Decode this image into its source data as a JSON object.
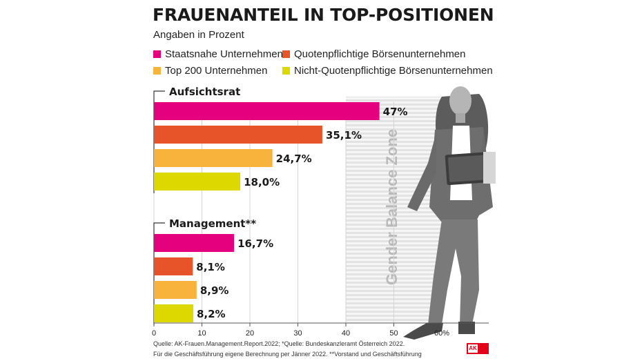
{
  "title": "FRAUENANTEIL IN TOP-POSITIONEN",
  "subtitle": "Angaben in Prozent",
  "legend": [
    {
      "label": "Staatsnahe Unternehmen*",
      "color": "#e5007e"
    },
    {
      "label": "Quotenpflichtige Börsenunternehmen",
      "color": "#e8542a"
    },
    {
      "label": "Top 200 Unternehmen",
      "color": "#f7b33b"
    },
    {
      "label": "Nicht-Quotenpflichtige Börsenunternehmen",
      "color": "#dcd800"
    }
  ],
  "zone_label": "Gender Balance Zone",
  "source_lines": [
    "Quelle: AK-Frauen.Management.Report.2022; *Quelle: Bundeskanzleramt Österreich 2022.",
    "Für die Geschäftsführung eigene Berechnung per Jänner 2022. **Vorstand und Geschäftsführung"
  ],
  "logo_text": "AK",
  "chart_data": {
    "type": "bar",
    "orientation": "horizontal",
    "title": "FRAUENANTEIL IN TOP-POSITIONEN",
    "subtitle": "Angaben in Prozent",
    "xlim": [
      0,
      60
    ],
    "x_ticks": [
      {
        "value": 0,
        "label": "0"
      },
      {
        "value": 10,
        "label": "10"
      },
      {
        "value": 20,
        "label": "20"
      },
      {
        "value": 30,
        "label": "30"
      },
      {
        "value": 40,
        "label": "40"
      },
      {
        "value": 50,
        "label": "50"
      },
      {
        "value": 60,
        "label": "60%"
      }
    ],
    "shaded_range": [
      40,
      60
    ],
    "grid": true,
    "legend_position": "top",
    "groups": [
      {
        "name": "Aufsichtsrat",
        "bars": [
          {
            "series": "Staatsnahe Unternehmen*",
            "value": 47.0,
            "label": "47%",
            "color": "#e5007e"
          },
          {
            "series": "Quotenpflichtige Börsenunternehmen",
            "value": 35.1,
            "label": "35,1%",
            "color": "#e8542a"
          },
          {
            "series": "Top 200 Unternehmen",
            "value": 24.7,
            "label": "24,7%",
            "color": "#f7b33b"
          },
          {
            "series": "Nicht-Quotenpflichtige Börsenunternehmen",
            "value": 18.0,
            "label": "18,0%",
            "color": "#dcd800"
          }
        ]
      },
      {
        "name": "Management**",
        "bars": [
          {
            "series": "Staatsnahe Unternehmen*",
            "value": 16.7,
            "label": "16,7%",
            "color": "#e5007e"
          },
          {
            "series": "Quotenpflichtige Börsenunternehmen",
            "value": 8.1,
            "label": "8,1%",
            "color": "#e8542a"
          },
          {
            "series": "Top 200 Unternehmen",
            "value": 8.9,
            "label": "8,9%",
            "color": "#f7b33b"
          },
          {
            "series": "Nicht-Quotenpflichtige Börsenunternehmen",
            "value": 8.2,
            "label": "8,2%",
            "color": "#dcd800"
          }
        ]
      }
    ]
  }
}
